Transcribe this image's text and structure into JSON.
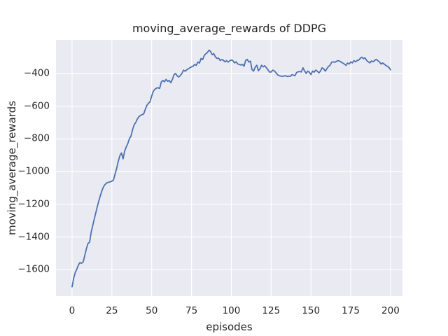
{
  "figure": {
    "background": "#ffffff",
    "plot_background": "#eaeaf2",
    "grid_color": "#ffffff",
    "text_color": "#262626",
    "line_color": "#4c72b0"
  },
  "chart_data": {
    "type": "line",
    "title": "moving_average_rewards of DDPG",
    "xlabel": "episodes",
    "ylabel": "moving_average_rewards",
    "grid": true,
    "legend": "none",
    "xlim": [
      -10.1,
      207.5
    ],
    "ylim": [
      -1762,
      -194
    ],
    "x_ticks": [
      0,
      25,
      50,
      75,
      100,
      125,
      150,
      175,
      200
    ],
    "x_tick_labels": [
      "0",
      "25",
      "50",
      "75",
      "100",
      "125",
      "150",
      "175",
      "200"
    ],
    "y_ticks": [
      -400,
      -600,
      -800,
      -1000,
      -1200,
      -1400,
      -1600
    ],
    "y_tick_labels": [
      "−400",
      "−600",
      "−800",
      "−1000",
      "−1200",
      "−1400",
      "−1600"
    ],
    "series": [
      {
        "name": "DDPG",
        "x_start": 0,
        "x_step": 1,
        "values": [
          -1705,
          -1652,
          -1618,
          -1597,
          -1571,
          -1557,
          -1561,
          -1552,
          -1512,
          -1473,
          -1440,
          -1432,
          -1370,
          -1330,
          -1288,
          -1248,
          -1208,
          -1173,
          -1140,
          -1110,
          -1088,
          -1076,
          -1068,
          -1065,
          -1063,
          -1058,
          -1052,
          -1015,
          -980,
          -938,
          -903,
          -886,
          -922,
          -876,
          -849,
          -828,
          -798,
          -783,
          -744,
          -713,
          -699,
          -678,
          -664,
          -656,
          -651,
          -647,
          -618,
          -594,
          -581,
          -573,
          -538,
          -508,
          -496,
          -489,
          -487,
          -491,
          -452,
          -442,
          -450,
          -436,
          -447,
          -442,
          -456,
          -436,
          -407,
          -399,
          -414,
          -421,
          -411,
          -399,
          -379,
          -386,
          -377,
          -371,
          -365,
          -359,
          -355,
          -344,
          -350,
          -330,
          -336,
          -308,
          -315,
          -289,
          -279,
          -271,
          -257,
          -265,
          -285,
          -278,
          -298,
          -307,
          -306,
          -320,
          -314,
          -319,
          -328,
          -321,
          -330,
          -322,
          -317,
          -321,
          -335,
          -328,
          -341,
          -345,
          -348,
          -344,
          -355,
          -320,
          -313,
          -330,
          -324,
          -376,
          -385,
          -361,
          -349,
          -383,
          -371,
          -349,
          -359,
          -352,
          -364,
          -377,
          -391,
          -390,
          -379,
          -384,
          -394,
          -407,
          -413,
          -415,
          -417,
          -415,
          -413,
          -418,
          -416,
          -417,
          -407,
          -410,
          -413,
          -394,
          -389,
          -388,
          -390,
          -365,
          -384,
          -399,
          -385,
          -392,
          -406,
          -385,
          -392,
          -379,
          -385,
          -396,
          -385,
          -365,
          -371,
          -385,
          -371,
          -357,
          -349,
          -331,
          -328,
          -331,
          -325,
          -321,
          -324,
          -330,
          -336,
          -342,
          -350,
          -336,
          -342,
          -329,
          -335,
          -321,
          -328,
          -320,
          -318,
          -307,
          -300,
          -309,
          -304,
          -320,
          -328,
          -335,
          -323,
          -328,
          -320,
          -313,
          -321,
          -328,
          -342,
          -335,
          -342,
          -350,
          -356,
          -363,
          -377
        ]
      }
    ]
  }
}
